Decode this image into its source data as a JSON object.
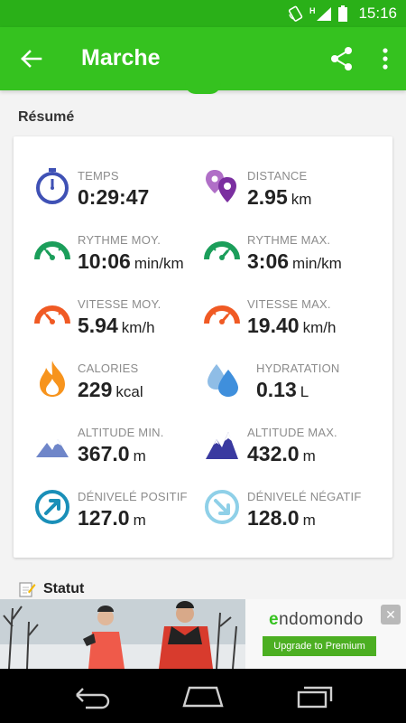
{
  "status_bar": {
    "time": "15:16",
    "icons": [
      "rotate-icon",
      "signal-icon",
      "battery-icon"
    ],
    "network_letter": "H"
  },
  "app_bar": {
    "title": "Marche",
    "icons": [
      "back-arrow-icon",
      "share-icon",
      "more-vert-icon"
    ]
  },
  "summary": {
    "title": "Résumé",
    "stats": [
      {
        "label": "TEMPS",
        "value": "0:29:47",
        "unit": "",
        "icon": "stopwatch-icon"
      },
      {
        "label": "DISTANCE",
        "value": "2.95",
        "unit": "km",
        "icon": "map-pins-icon"
      },
      {
        "label": "RYTHME MOY.",
        "value": "10:06",
        "unit": "min/km",
        "icon": "pace-avg-gauge-icon"
      },
      {
        "label": "RYTHME MAX.",
        "value": "3:06",
        "unit": "min/km",
        "icon": "pace-max-gauge-icon"
      },
      {
        "label": "VITESSE MOY.",
        "value": "5.94",
        "unit": "km/h",
        "icon": "speed-avg-gauge-icon"
      },
      {
        "label": "VITESSE MAX.",
        "value": "19.40",
        "unit": "km/h",
        "icon": "speed-max-gauge-icon"
      },
      {
        "label": "CALORIES",
        "value": "229",
        "unit": "kcal",
        "icon": "flame-icon"
      },
      {
        "label": "HYDRATATION",
        "value": "0.13",
        "unit": "L",
        "icon": "water-drops-icon"
      },
      {
        "label": "ALTITUDE MIN.",
        "value": "367.0",
        "unit": "m",
        "icon": "mountain-min-icon"
      },
      {
        "label": "ALTITUDE MAX.",
        "value": "432.0",
        "unit": "m",
        "icon": "mountain-max-icon"
      },
      {
        "label": "DÉNIVELÉ POSITIF",
        "value": "127.0",
        "unit": "m",
        "icon": "ascent-arrow-icon"
      },
      {
        "label": "DÉNIVELÉ NÉGATIF",
        "value": "128.0",
        "unit": "m",
        "icon": "descent-arrow-icon"
      }
    ]
  },
  "statut": {
    "label": "Statut",
    "icon": "note-edit-icon"
  },
  "ad": {
    "brand": "endomondo",
    "cta": "Upgrade to Premium",
    "icons": [
      "runners-photo",
      "ad-close-icon"
    ]
  },
  "nav": {
    "icons": [
      "back-nav-icon",
      "home-nav-icon",
      "recents-nav-icon"
    ]
  },
  "colors": {
    "app_bar": "#35c21f",
    "status_bar": "#2ab018",
    "blue": "#3f51b5",
    "purple": "#8e44ad",
    "green": "#1b9e5a",
    "orange": "#f05a24",
    "flame": "#f7941d",
    "light_blue": "#4da3e0",
    "navy": "#3a3aa0",
    "teal": "#1a8fb8",
    "ad_cta": "#4caf22"
  }
}
